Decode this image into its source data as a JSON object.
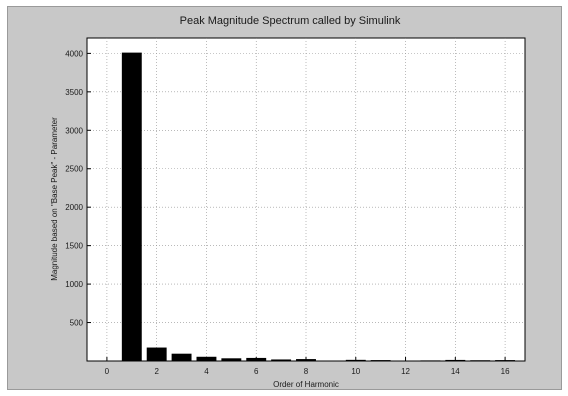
{
  "chart_data": {
    "type": "bar",
    "title": "Peak Magnitude Spectrum called by Simulink",
    "xlabel": "Order of Harmonic",
    "ylabel": "Magnitude based on \"Base Peak\" - Parameter",
    "x": [
      0,
      1,
      2,
      3,
      4,
      5,
      6,
      7,
      8,
      9,
      10,
      11,
      12,
      13,
      14,
      15,
      16
    ],
    "values": [
      6,
      4010,
      175,
      95,
      55,
      35,
      40,
      20,
      25,
      5,
      15,
      12,
      4,
      8,
      14,
      10,
      12
    ],
    "xlim": [
      -0.8,
      16.8
    ],
    "ylim": [
      0,
      4200
    ],
    "xticks": [
      0,
      2,
      4,
      6,
      8,
      10,
      12,
      14,
      16
    ],
    "yticks": [
      500,
      1000,
      1500,
      2000,
      2500,
      3000,
      3500,
      4000
    ],
    "grid": true,
    "bar_color": "#000000",
    "background_color": "#c8c8c8",
    "plot_color": "#ffffff"
  }
}
